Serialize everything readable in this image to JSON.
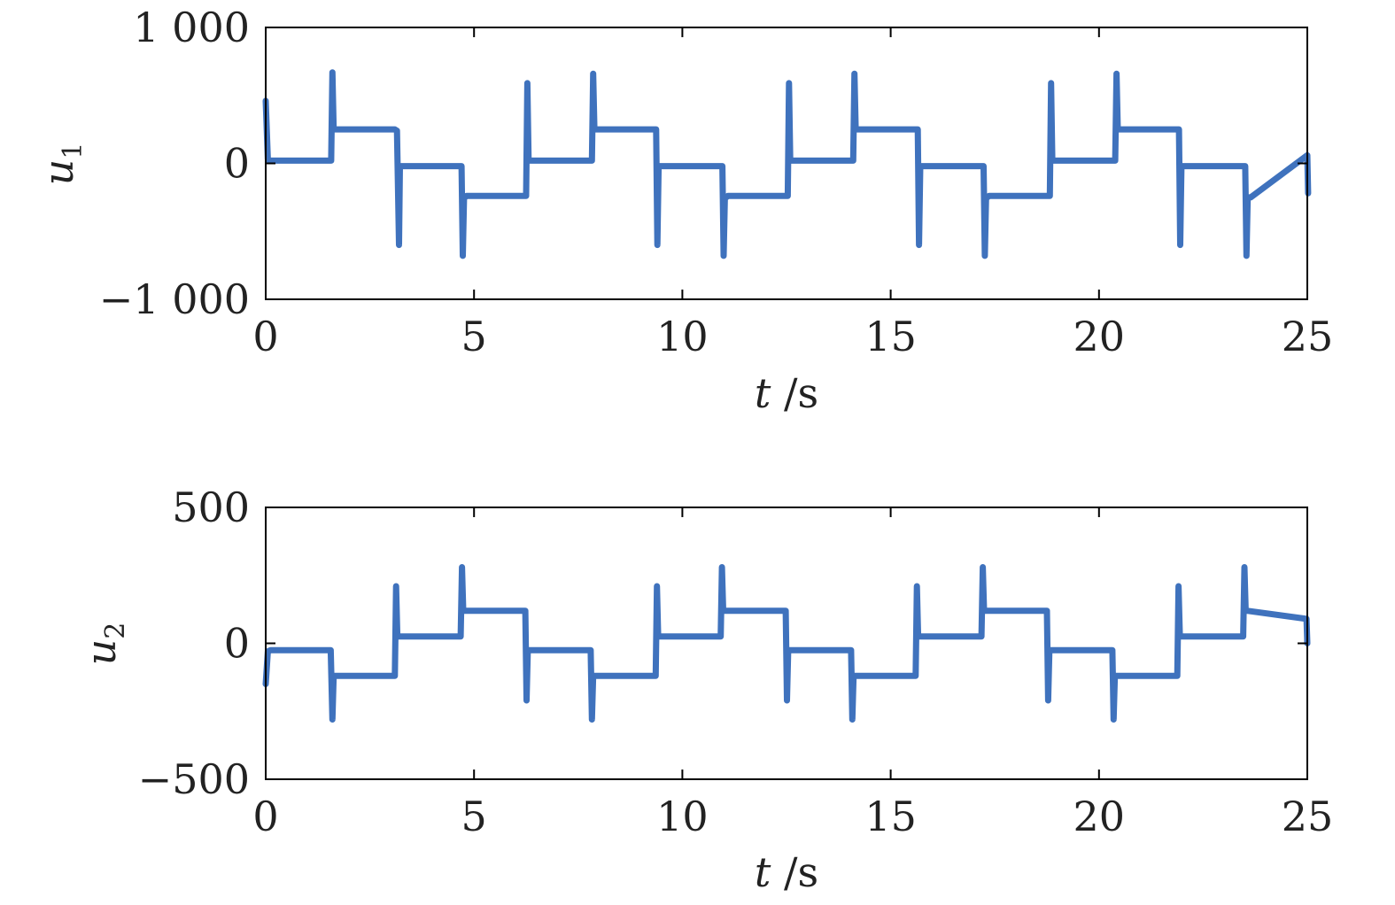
{
  "chart_data": [
    {
      "type": "line",
      "ylabel": "u",
      "ylabel_sub": "1",
      "xlabel_var": "t",
      "xlabel_unit": "/s",
      "xlim": [
        0,
        25
      ],
      "ylim": [
        -1000,
        1000
      ],
      "xticks": [
        0,
        5,
        10,
        15,
        20,
        25
      ],
      "xtick_labels": [
        "0",
        "5",
        "10",
        "15",
        "20",
        "25"
      ],
      "yticks": [
        -1000,
        0,
        1000
      ],
      "ytick_labels": [
        "−1 000",
        "0",
        "1 000"
      ],
      "grid": false,
      "color": "#3f72bd",
      "series": [
        {
          "x": [
            0,
            0.05,
            0.1,
            1.57,
            1.6,
            1.63,
            1.66,
            3.1,
            3.15,
            3.2,
            3.22,
            3.26,
            4.7,
            4.73,
            4.76,
            4.78,
            4.82,
            6.25,
            6.28,
            6.31,
            6.34,
            7.83,
            7.86,
            7.89,
            7.92,
            9.37,
            9.4,
            9.43,
            9.46,
            9.5,
            10.96,
            10.99,
            11.02,
            11.05,
            11.09,
            12.53,
            12.56,
            12.59,
            12.62,
            14.1,
            14.13,
            14.16,
            14.19,
            15.65,
            15.68,
            15.71,
            15.74,
            15.78,
            17.23,
            17.26,
            17.29,
            17.32,
            17.36,
            18.82,
            18.85,
            18.88,
            18.91,
            20.39,
            20.42,
            20.45,
            20.48,
            21.92,
            21.95,
            21.98,
            22.01,
            22.05,
            23.51,
            23.54,
            23.57,
            23.6,
            23.64,
            25,
            25.02
          ],
          "y": [
            460,
            30,
            20,
            20,
            670,
            250,
            250,
            250,
            240,
            -600,
            -20,
            -20,
            -20,
            -680,
            -250,
            -250,
            -240,
            -240,
            590,
            20,
            20,
            20,
            660,
            250,
            250,
            250,
            -600,
            -20,
            -20,
            -20,
            -20,
            -680,
            -250,
            -250,
            -240,
            -240,
            590,
            20,
            20,
            20,
            660,
            250,
            250,
            250,
            -600,
            -20,
            -20,
            -20,
            -20,
            -680,
            -250,
            -250,
            -240,
            -240,
            590,
            20,
            20,
            20,
            660,
            250,
            250,
            250,
            -600,
            -20,
            -20,
            -20,
            -20,
            -680,
            -250,
            -250,
            -250,
            60,
            -220
          ]
        }
      ]
    },
    {
      "type": "line",
      "ylabel": "u",
      "ylabel_sub": "2",
      "xlabel_var": "t",
      "xlabel_unit": "/s",
      "xlim": [
        0,
        25
      ],
      "ylim": [
        -500,
        500
      ],
      "xticks": [
        0,
        5,
        10,
        15,
        20,
        25
      ],
      "xtick_labels": [
        "0",
        "5",
        "10",
        "15",
        "20",
        "25"
      ],
      "yticks": [
        -500,
        0,
        500
      ],
      "ytick_labels": [
        "−500",
        "0",
        "500"
      ],
      "grid": false,
      "color": "#3f72bd",
      "series": [
        {
          "x": [
            0,
            0.05,
            0.12,
            1.56,
            1.6,
            1.63,
            1.66,
            3.1,
            3.13,
            3.16,
            3.19,
            4.68,
            4.71,
            4.74,
            4.77,
            6.23,
            6.26,
            6.29,
            6.32,
            7.8,
            7.83,
            7.86,
            7.89,
            9.36,
            9.39,
            9.42,
            9.45,
            10.92,
            10.95,
            10.98,
            11.01,
            12.48,
            12.51,
            12.54,
            12.57,
            14.05,
            14.08,
            14.11,
            14.14,
            15.6,
            15.63,
            15.66,
            15.69,
            17.18,
            17.21,
            17.24,
            17.27,
            18.75,
            18.78,
            18.81,
            18.84,
            20.32,
            20.35,
            20.38,
            20.41,
            21.88,
            21.91,
            21.94,
            21.97,
            23.46,
            23.49,
            23.52,
            23.55,
            24.98,
            25
          ],
          "y": [
            -150,
            -30,
            -25,
            -25,
            -280,
            -120,
            -120,
            -120,
            210,
            25,
            25,
            25,
            280,
            120,
            120,
            120,
            -210,
            -25,
            -25,
            -25,
            -280,
            -120,
            -120,
            -120,
            210,
            25,
            25,
            25,
            280,
            120,
            120,
            120,
            -210,
            -25,
            -25,
            -25,
            -280,
            -120,
            -120,
            -120,
            210,
            25,
            25,
            25,
            280,
            120,
            120,
            120,
            -210,
            -25,
            -25,
            -25,
            -280,
            -120,
            -120,
            -120,
            210,
            25,
            25,
            25,
            280,
            120,
            120,
            90,
            0
          ]
        }
      ]
    }
  ]
}
